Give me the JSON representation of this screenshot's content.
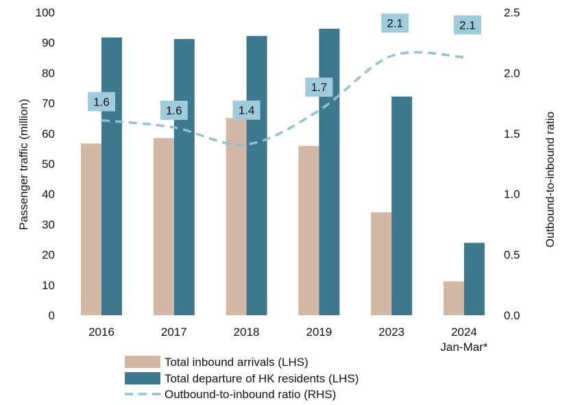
{
  "chart_data": {
    "type": "bar",
    "categories": [
      {
        "line1": "2016",
        "line2": ""
      },
      {
        "line1": "2017",
        "line2": ""
      },
      {
        "line1": "2018",
        "line2": ""
      },
      {
        "line1": "2019",
        "line2": ""
      },
      {
        "line1": "2023",
        "line2": ""
      },
      {
        "line1": "2024",
        "line2": "Jan-Mar*"
      }
    ],
    "series": [
      {
        "name": "Total inbound arrivals (LHS)",
        "axis": "left",
        "kind": "bar",
        "color": "#D4B8A6",
        "values": [
          56.7,
          58.5,
          65.1,
          55.9,
          34.0,
          11.2
        ]
      },
      {
        "name": "Total departure of HK residents (LHS)",
        "axis": "left",
        "kind": "bar",
        "color": "#3D788C",
        "values": [
          91.7,
          91.2,
          92.2,
          94.6,
          72.2,
          23.9
        ]
      },
      {
        "name": "Outbound-to-inbound ratio (RHS)",
        "axis": "right",
        "kind": "line",
        "style": "dashed",
        "color": "#8CC4D6",
        "values": [
          1.61,
          1.55,
          1.41,
          1.69,
          2.14,
          2.13
        ],
        "labels": [
          "1.6",
          "1.6",
          "1.4",
          "1.7",
          "2.1",
          "2.1"
        ]
      }
    ],
    "label_box_color": "#9ECCDC",
    "ylabel_left": "Passenger traffic (million)",
    "ylabel_right": "Outbound-to-inbound ratio",
    "ylim_left": [
      0,
      100
    ],
    "ylim_right": [
      0,
      2.5
    ],
    "yticks_left": [
      "0",
      "10",
      "20",
      "30",
      "40",
      "50",
      "60",
      "70",
      "80",
      "90",
      "100"
    ],
    "yticks_right": [
      "0.0",
      "0.5",
      "1.0",
      "1.5",
      "2.0",
      "2.5"
    ],
    "grid": false,
    "legend_position": "bottom"
  }
}
